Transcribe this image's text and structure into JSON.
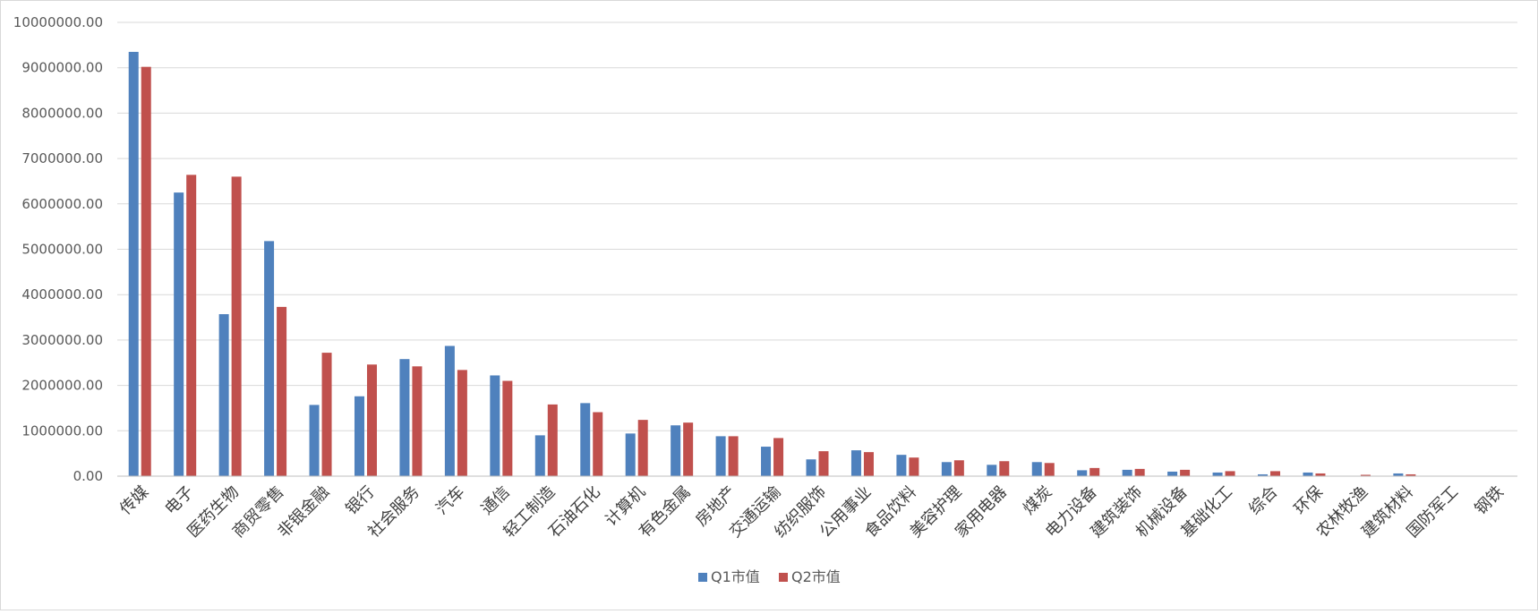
{
  "chart_data": {
    "type": "bar",
    "title": "",
    "xlabel": "",
    "ylabel": "",
    "ylim": [
      0,
      10000000
    ],
    "ytick_step": 1000000,
    "ytick_labels": [
      "0.00",
      "1000000.00",
      "2000000.00",
      "3000000.00",
      "4000000.00",
      "5000000.00",
      "6000000.00",
      "7000000.00",
      "8000000.00",
      "9000000.00",
      "10000000.00"
    ],
    "grid": true,
    "legend": "bottom-center",
    "categories": [
      "传媒",
      "电子",
      "医药生物",
      "商贸零售",
      "非银金融",
      "银行",
      "社会服务",
      "汽车",
      "通信",
      "轻工制造",
      "石油石化",
      "计算机",
      "有色金属",
      "房地产",
      "交通运输",
      "纺织服饰",
      "公用事业",
      "食品饮料",
      "美容护理",
      "家用电器",
      "煤炭",
      "电力设备",
      "建筑装饰",
      "机械设备",
      "基础化工",
      "综合",
      "环保",
      "农林牧渔",
      "建筑材料",
      "国防军工",
      "钢铁"
    ],
    "series": [
      {
        "name": "Q1市值",
        "color": "#4f81bd",
        "values": [
          9350000,
          6250000,
          3570000,
          5180000,
          1570000,
          1760000,
          2580000,
          2870000,
          2220000,
          900000,
          1610000,
          940000,
          1120000,
          880000,
          650000,
          370000,
          570000,
          470000,
          310000,
          250000,
          310000,
          130000,
          140000,
          100000,
          80000,
          40000,
          80000,
          10000,
          60000,
          5000,
          0
        ]
      },
      {
        "name": "Q2市值",
        "color": "#c0504d",
        "values": [
          9020000,
          6640000,
          6600000,
          3730000,
          2720000,
          2460000,
          2420000,
          2340000,
          2100000,
          1580000,
          1410000,
          1240000,
          1180000,
          880000,
          840000,
          550000,
          530000,
          410000,
          350000,
          330000,
          290000,
          180000,
          160000,
          140000,
          110000,
          110000,
          60000,
          30000,
          40000,
          5000,
          0
        ]
      }
    ]
  }
}
